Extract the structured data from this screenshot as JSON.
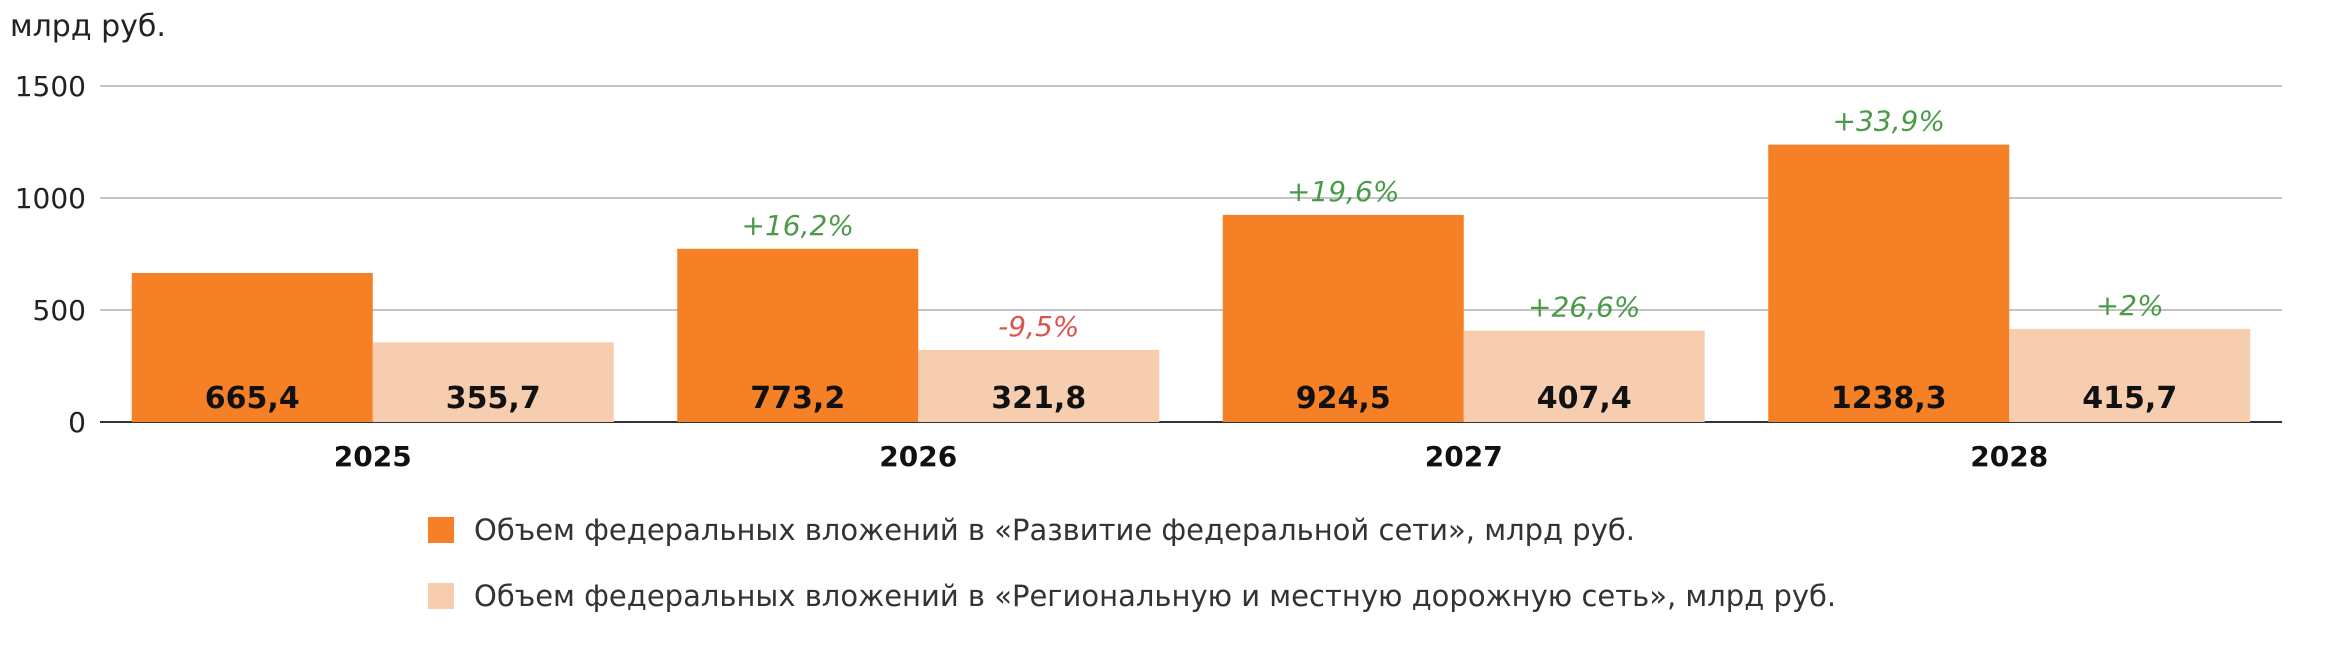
{
  "chart_data": {
    "type": "bar",
    "ylabel": "млрд руб.",
    "ylim": [
      0,
      1500
    ],
    "yticks": [
      "0",
      "500",
      "1000",
      "1500"
    ],
    "grid": true,
    "legend_position": "bottom",
    "categories": [
      "2025",
      "2026",
      "2027",
      "2028"
    ],
    "series": [
      {
        "name": "Объем федеральных вложений в «Развитие федеральной сети», млрд руб.",
        "color": "#f58025",
        "values": [
          665.4,
          773.2,
          924.5,
          1238.3
        ],
        "value_labels": [
          "665,4",
          "773,2",
          "924,5",
          "1238,3"
        ],
        "change_labels": [
          "",
          "+16,2%",
          "+19,6%",
          "+33,9%"
        ]
      },
      {
        "name": "Объем федеральных вложений в «Региональную и местную дорожную сеть», млрд руб.",
        "color": "#f7cdb0",
        "values": [
          355.7,
          321.8,
          407.4,
          415.7
        ],
        "value_labels": [
          "355,7",
          "321,8",
          "407,4",
          "415,7"
        ],
        "change_labels": [
          "",
          "-9,5%",
          "+26,6%",
          "+2%"
        ]
      }
    ],
    "colors": {
      "positive_change": "#4a9a4a",
      "negative_change": "#d9534f",
      "grid": "#b0b0b0",
      "axis": "#333333"
    }
  }
}
